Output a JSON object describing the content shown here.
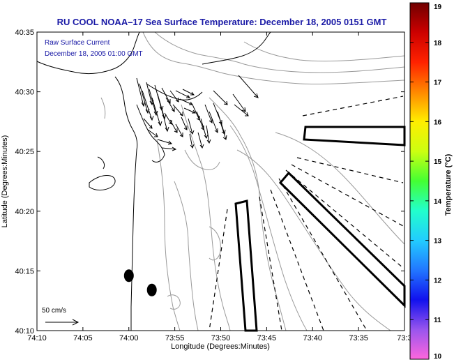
{
  "title": "RU COOL   NOAA–17  Sea Surface Temperature:  December 18, 2005 0151 GMT",
  "annotation": {
    "line1": "Raw Surface Current",
    "line2": "December 18, 2005 01:00 GMT"
  },
  "scale_label": "50 cm/s",
  "axes": {
    "xlabel": "Longitude (Degrees:Minutes)",
    "ylabel": "Latitude (Degrees:Minutes)",
    "xticks": [
      "74:10",
      "74:05",
      "74:00",
      "73:55",
      "73:50",
      "73:45",
      "73:40",
      "73:35",
      "73:3"
    ],
    "yticks": [
      "40:35",
      "40:30",
      "40:25",
      "40:20",
      "40:15",
      "40:10"
    ]
  },
  "colorbar": {
    "label": "Temperature (°C)",
    "ticks": [
      "19",
      "18",
      "17",
      "16",
      "15",
      "14",
      "13",
      "12",
      "11",
      "10"
    ],
    "min": 10,
    "max": 19,
    "colors": [
      "#ff66dd",
      "#9955ee",
      "#1111ee",
      "#2277ff",
      "#22ccff",
      "#22ffcc",
      "#44ff33",
      "#ccff11",
      "#ffee00",
      "#ff8800",
      "#ff2200",
      "#cc0000",
      "#700000"
    ]
  },
  "markers": [
    {
      "name": "buoy-marker-west",
      "lon": -74.0,
      "lat": 40.2433
    },
    {
      "name": "buoy-marker-east",
      "lon": -73.9583,
      "lat": 40.2233
    }
  ],
  "colors": {
    "land": "#ffffff",
    "coast": "#000000",
    "bathymetry": "#999999",
    "arrow": "#000000",
    "title": "#1a1aa6"
  }
}
